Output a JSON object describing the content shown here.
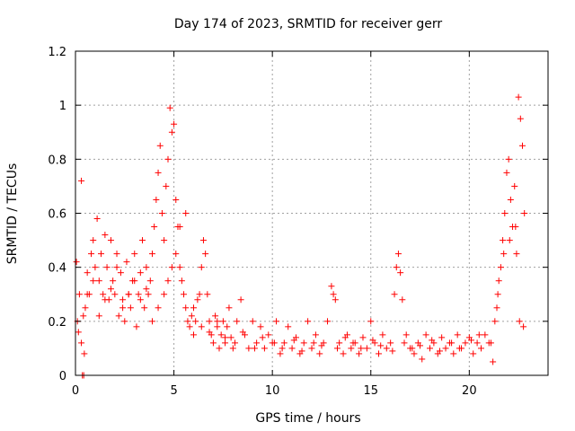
{
  "chart_data": {
    "type": "scatter",
    "title": "Day 174 of 2023, SRMTID for receiver gerr",
    "xlabel": "GPS time / hours",
    "ylabel": "SRMTID / TECUs",
    "xlim": [
      0,
      24
    ],
    "ylim": [
      0,
      1.2
    ],
    "xticks": [
      0,
      5,
      10,
      15,
      20
    ],
    "xtick_labels": [
      "0",
      "5",
      "10",
      "15",
      "20"
    ],
    "yticks": [
      0,
      0.2,
      0.4,
      0.6,
      0.8,
      1,
      1.2
    ],
    "ytick_labels": [
      "0",
      "0.2",
      "0.4",
      "0.6",
      "0.8",
      "1",
      "1.2"
    ],
    "grid": true,
    "marker": "+",
    "color": "#ff0000",
    "series": [
      {
        "name": "gerr",
        "x": [
          0.05,
          0.1,
          0.15,
          0.2,
          0.3,
          0.4,
          0.45,
          0.5,
          0.6,
          0.7,
          0.8,
          0.9,
          1.0,
          1.1,
          1.2,
          1.3,
          1.4,
          1.5,
          1.6,
          1.7,
          1.8,
          1.9,
          2.0,
          2.1,
          2.2,
          2.3,
          2.4,
          2.5,
          2.6,
          2.7,
          2.8,
          2.9,
          3.0,
          3.1,
          3.2,
          3.3,
          3.4,
          3.5,
          3.6,
          3.7,
          3.8,
          3.9,
          4.0,
          4.1,
          4.2,
          4.3,
          4.4,
          4.5,
          4.6,
          4.7,
          4.8,
          4.9,
          5.0,
          5.1,
          5.2,
          5.3,
          5.4,
          5.5,
          5.6,
          5.7,
          5.8,
          5.9,
          6.0,
          6.1,
          6.2,
          6.3,
          6.4,
          6.5,
          6.6,
          6.7,
          6.8,
          6.9,
          7.0,
          7.1,
          7.2,
          7.3,
          7.4,
          7.5,
          7.6,
          7.7,
          7.8,
          7.9,
          8.0,
          8.2,
          8.4,
          8.6,
          8.8,
          9.0,
          9.2,
          9.4,
          9.6,
          9.8,
          10.0,
          10.2,
          10.4,
          10.6,
          10.8,
          11.0,
          11.2,
          11.4,
          11.6,
          11.8,
          12.0,
          12.2,
          12.4,
          12.6,
          12.8,
          13.0,
          13.1,
          13.2,
          13.4,
          13.6,
          13.8,
          14.0,
          14.2,
          14.4,
          14.6,
          14.8,
          15.0,
          15.2,
          15.4,
          15.6,
          15.8,
          16.0,
          16.2,
          16.3,
          16.4,
          16.5,
          16.6,
          16.8,
          17.0,
          17.2,
          17.4,
          17.6,
          17.8,
          18.0,
          18.2,
          18.4,
          18.6,
          18.8,
          19.0,
          19.2,
          19.4,
          19.6,
          19.8,
          20.0,
          20.2,
          20.4,
          20.6,
          20.8,
          21.0,
          21.2,
          21.3,
          21.4,
          21.5,
          21.6,
          21.7,
          21.8,
          21.9,
          22.0,
          22.1,
          22.2,
          22.3,
          22.4,
          22.5,
          22.6,
          22.7,
          22.8,
          0.3,
          0.6,
          0.9,
          1.2,
          1.5,
          1.8,
          2.1,
          2.4,
          2.7,
          3.0,
          3.3,
          3.6,
          3.9,
          4.2,
          4.5,
          4.7,
          4.9,
          5.1,
          5.3,
          5.6,
          6.0,
          6.4,
          6.8,
          7.2,
          7.6,
          8.1,
          8.5,
          9.1,
          9.5,
          10.1,
          10.5,
          11.1,
          11.5,
          12.1,
          12.5,
          13.3,
          13.7,
          14.1,
          14.5,
          15.1,
          15.5,
          16.1,
          16.7,
          17.1,
          17.5,
          18.1,
          18.5,
          19.1,
          19.5,
          20.1,
          20.5,
          21.1,
          21.45,
          21.75,
          22.05,
          22.35,
          22.55,
          22.75,
          0.35,
          0.42
        ],
        "y": [
          0.42,
          0.2,
          0.16,
          0.3,
          0.12,
          0.22,
          0.08,
          0.25,
          0.38,
          0.3,
          0.45,
          0.5,
          0.4,
          0.58,
          0.35,
          0.45,
          0.3,
          0.52,
          0.4,
          0.28,
          0.5,
          0.35,
          0.3,
          0.45,
          0.22,
          0.38,
          0.28,
          0.2,
          0.42,
          0.3,
          0.25,
          0.35,
          0.45,
          0.18,
          0.3,
          0.38,
          0.5,
          0.25,
          0.4,
          0.3,
          0.35,
          0.45,
          0.55,
          0.65,
          0.75,
          0.85,
          0.6,
          0.5,
          0.7,
          0.8,
          0.99,
          0.9,
          0.93,
          0.65,
          0.55,
          0.4,
          0.35,
          0.3,
          0.25,
          0.2,
          0.18,
          0.22,
          0.15,
          0.2,
          0.28,
          0.3,
          0.4,
          0.5,
          0.45,
          0.3,
          0.2,
          0.15,
          0.12,
          0.22,
          0.18,
          0.1,
          0.15,
          0.2,
          0.12,
          0.18,
          0.25,
          0.14,
          0.1,
          0.2,
          0.28,
          0.15,
          0.1,
          0.2,
          0.12,
          0.18,
          0.1,
          0.15,
          0.12,
          0.2,
          0.08,
          0.12,
          0.18,
          0.1,
          0.14,
          0.08,
          0.12,
          0.2,
          0.1,
          0.15,
          0.08,
          0.12,
          0.2,
          0.33,
          0.3,
          0.28,
          0.12,
          0.08,
          0.15,
          0.1,
          0.12,
          0.08,
          0.14,
          0.1,
          0.2,
          0.12,
          0.08,
          0.15,
          0.1,
          0.12,
          0.3,
          0.4,
          0.45,
          0.38,
          0.28,
          0.15,
          0.1,
          0.08,
          0.12,
          0.06,
          0.15,
          0.1,
          0.12,
          0.08,
          0.14,
          0.1,
          0.12,
          0.08,
          0.15,
          0.1,
          0.12,
          0.14,
          0.08,
          0.12,
          0.1,
          0.15,
          0.12,
          0.05,
          0.2,
          0.25,
          0.35,
          0.4,
          0.5,
          0.6,
          0.75,
          0.8,
          0.65,
          0.55,
          0.7,
          0.45,
          1.03,
          0.95,
          0.85,
          0.6,
          0.72,
          0.3,
          0.35,
          0.22,
          0.28,
          0.32,
          0.4,
          0.25,
          0.3,
          0.35,
          0.28,
          0.32,
          0.2,
          0.25,
          0.3,
          0.35,
          0.4,
          0.45,
          0.55,
          0.6,
          0.25,
          0.18,
          0.16,
          0.2,
          0.14,
          0.12,
          0.16,
          0.1,
          0.14,
          0.12,
          0.1,
          0.13,
          0.09,
          0.12,
          0.11,
          0.1,
          0.14,
          0.12,
          0.1,
          0.13,
          0.11,
          0.09,
          0.12,
          0.1,
          0.11,
          0.13,
          0.09,
          0.12,
          0.1,
          0.13,
          0.15,
          0.12,
          0.3,
          0.45,
          0.5,
          0.55,
          0.2,
          0.18,
          0.0,
          0.0
        ]
      }
    ]
  }
}
